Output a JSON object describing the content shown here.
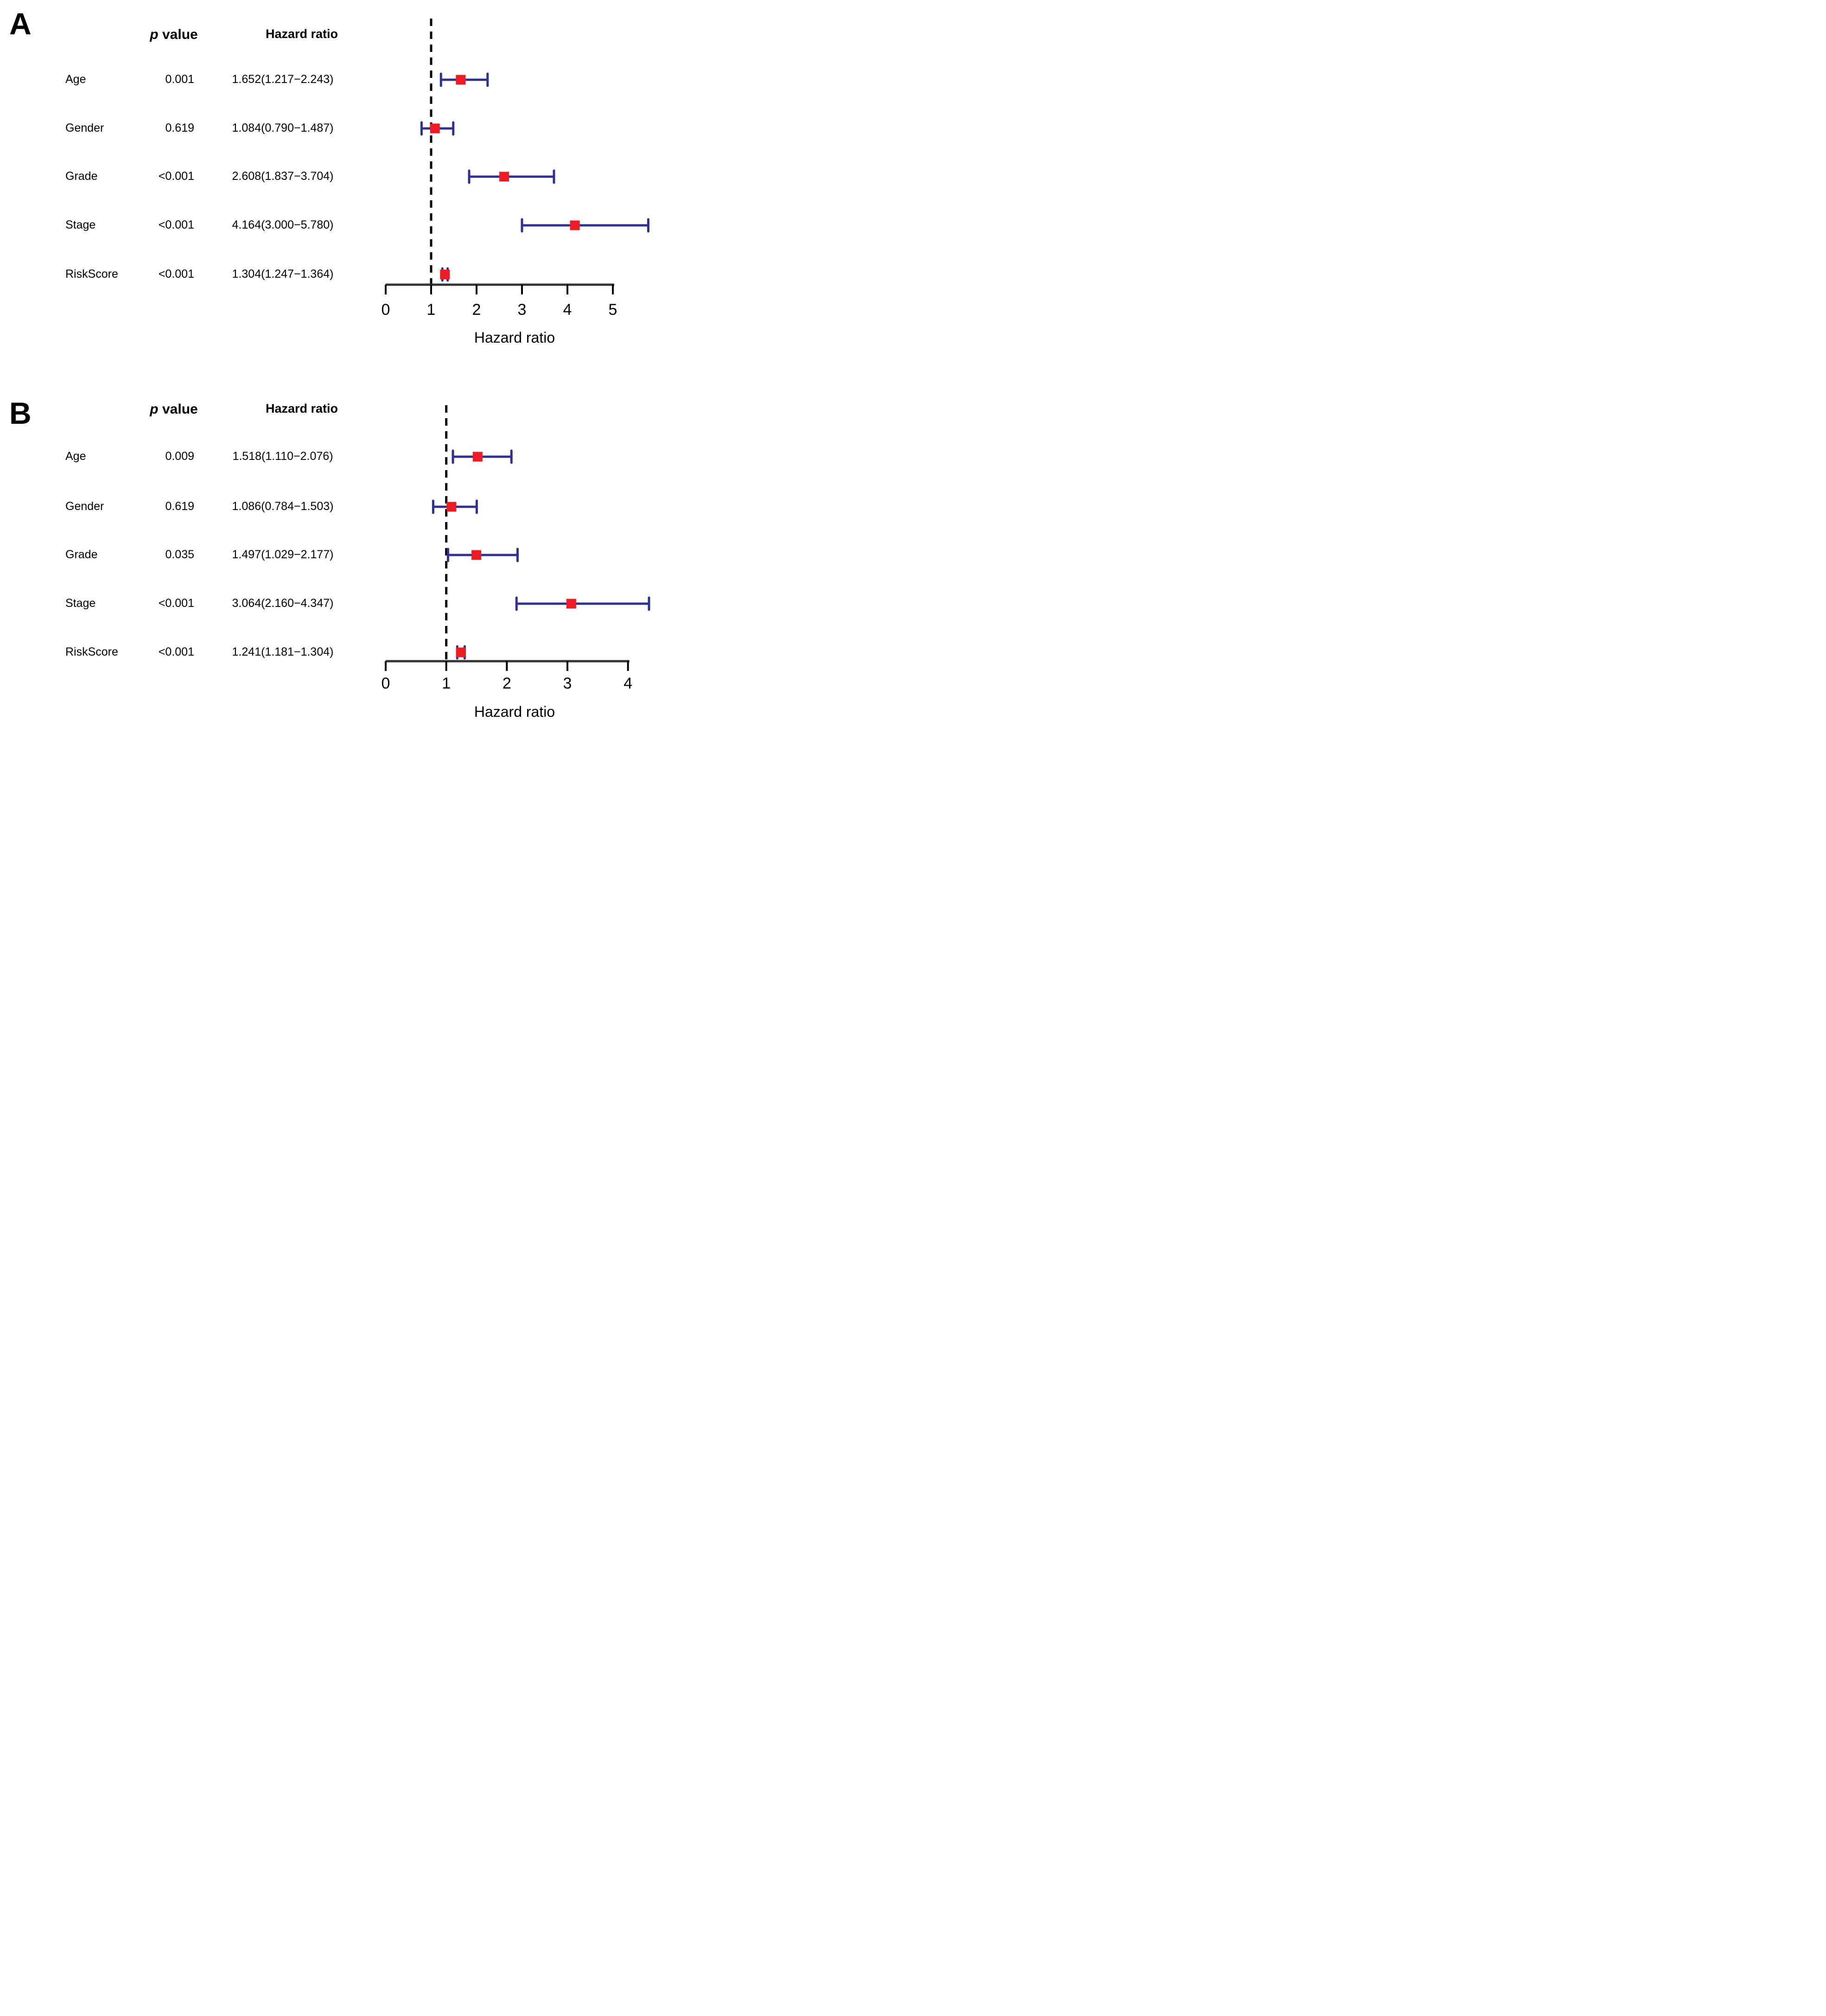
{
  "background": "#ffffff",
  "colors": {
    "marker": "#ED1C24",
    "ci_bar": "#2E3192",
    "reference_line": "#000000",
    "axis_line": "#333333",
    "tick": "#000000",
    "text": "#000000"
  },
  "chart_data": [
    {
      "type": "forest",
      "panel_label": "A",
      "headers": {
        "p_italic": "p",
        "p_rest": "value",
        "hazard_ratio": "Hazard ratio"
      },
      "xlabel": "Hazard ratio",
      "x_ticks": [
        0,
        1,
        2,
        3,
        4,
        5
      ],
      "xlim": [
        0,
        6.0
      ],
      "reference_line_x": 1,
      "grid": false,
      "legend": null,
      "rows": [
        {
          "label": "Age",
          "p_value": "0.001",
          "hr_label": "1.652(1.217−2.243)",
          "hr": 1.652,
          "ci_low": 1.217,
          "ci_high": 2.243
        },
        {
          "label": "Gender",
          "p_value": "0.619",
          "hr_label": "1.084(0.790−1.487)",
          "hr": 1.084,
          "ci_low": 0.79,
          "ci_high": 1.487
        },
        {
          "label": "Grade",
          "p_value": "<0.001",
          "hr_label": "2.608(1.837−3.704)",
          "hr": 2.608,
          "ci_low": 1.837,
          "ci_high": 3.704
        },
        {
          "label": "Stage",
          "p_value": "<0.001",
          "hr_label": "4.164(3.000−5.780)",
          "hr": 4.164,
          "ci_low": 3.0,
          "ci_high": 5.78
        },
        {
          "label": "RiskScore",
          "p_value": "<0.001",
          "hr_label": "1.304(1.247−1.364)",
          "hr": 1.304,
          "ci_low": 1.247,
          "ci_high": 1.364
        }
      ]
    },
    {
      "type": "forest",
      "panel_label": "B",
      "headers": {
        "p_italic": "p",
        "p_rest": "value",
        "hazard_ratio": "Hazard ratio"
      },
      "xlabel": "Hazard ratio",
      "x_ticks": [
        0,
        1,
        2,
        3,
        4
      ],
      "xlim": [
        0,
        4.5
      ],
      "reference_line_x": 1,
      "grid": false,
      "legend": null,
      "rows": [
        {
          "label": "Age",
          "p_value": "0.009",
          "hr_label": "1.518(1.110−2.076)",
          "hr": 1.518,
          "ci_low": 1.11,
          "ci_high": 2.076
        },
        {
          "label": "Gender",
          "p_value": "0.619",
          "hr_label": "1.086(0.784−1.503)",
          "hr": 1.086,
          "ci_low": 0.784,
          "ci_high": 1.503
        },
        {
          "label": "Grade",
          "p_value": "0.035",
          "hr_label": "1.497(1.029−2.177)",
          "hr": 1.497,
          "ci_low": 1.029,
          "ci_high": 2.177
        },
        {
          "label": "Stage",
          "p_value": "<0.001",
          "hr_label": "3.064(2.160−4.347)",
          "hr": 3.064,
          "ci_low": 2.16,
          "ci_high": 4.347
        },
        {
          "label": "RiskScore",
          "p_value": "<0.001",
          "hr_label": "1.241(1.181−1.304)",
          "hr": 1.241,
          "ci_low": 1.181,
          "ci_high": 1.304
        }
      ]
    }
  ]
}
